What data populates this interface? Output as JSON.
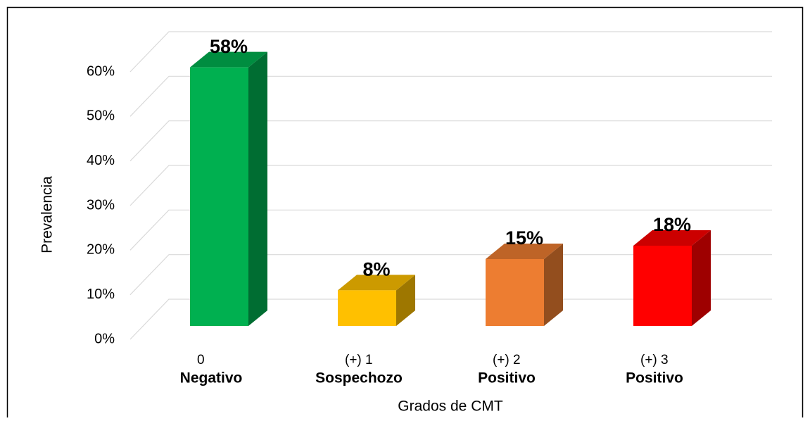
{
  "chart_data": {
    "type": "bar3d",
    "categories": [
      "0",
      "(+) 1",
      "(+) 2",
      "(+) 3"
    ],
    "category_sublabels": [
      "Negativo",
      "Sospechozo",
      "Positivo",
      "Positivo"
    ],
    "values": [
      58,
      8,
      15,
      18
    ],
    "value_labels": [
      "58%",
      "8%",
      "15%",
      "18%"
    ],
    "colors": [
      "#00b050",
      "#ffc000",
      "#ed7d31",
      "#ff0000"
    ],
    "x_label": "Grados de CMT",
    "y_label": "Prevalencia",
    "ylim": [
      0,
      60
    ],
    "yticks": [
      {
        "value": 0,
        "label": "0%"
      },
      {
        "value": 10,
        "label": "10%"
      },
      {
        "value": 20,
        "label": "20%"
      },
      {
        "value": 30,
        "label": "30%"
      },
      {
        "value": 40,
        "label": "40%"
      },
      {
        "value": 50,
        "label": "50%"
      },
      {
        "value": 60,
        "label": "60%"
      }
    ],
    "grid": true
  }
}
